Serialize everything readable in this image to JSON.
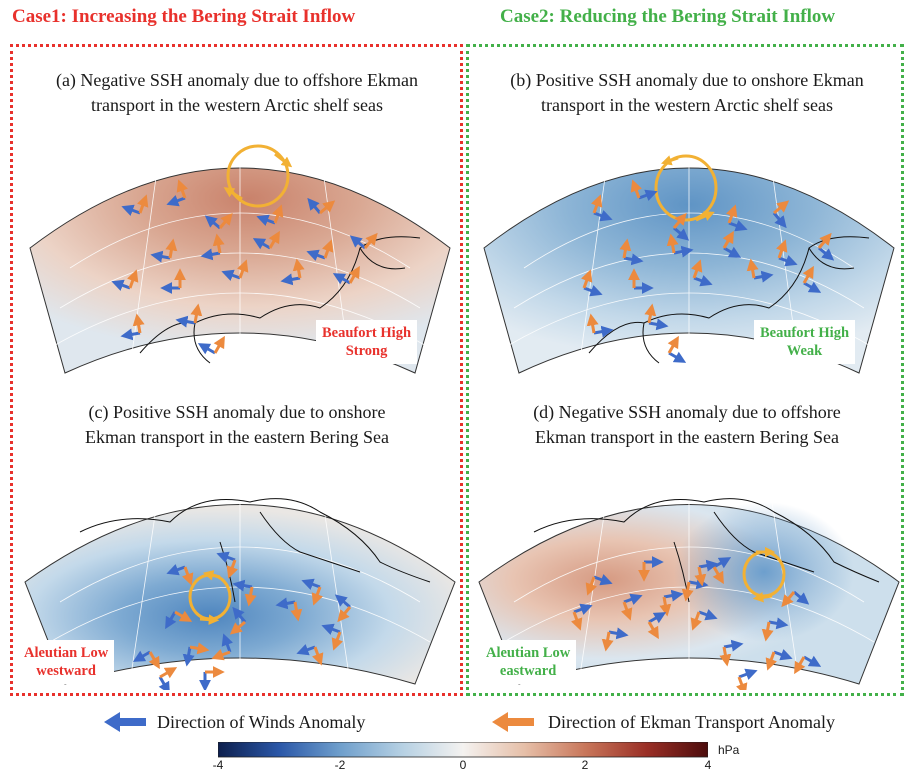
{
  "case1_title": "Case1: Increasing the Bering Strait Inflow",
  "case2_title": "Case2: Reducing the Bering Strait Inflow",
  "panels": {
    "a": {
      "line1": "(a) Negative SSH anomaly due to offshore Ekman",
      "line2": "transport in the western Arctic shelf seas",
      "label1": "Beaufort High",
      "label2": "Strong"
    },
    "b": {
      "line1": "(b) Positive SSH anomaly due to onshore Ekman",
      "line2": "transport in the western Arctic shelf seas",
      "label1": "Beaufort High",
      "label2": "Weak"
    },
    "c": {
      "line1": "(c) Positive SSH anomaly due to onshore",
      "line2": "Ekman transport in the eastern Bering Sea",
      "label1": "Aleutian Low",
      "label2": "westward"
    },
    "d": {
      "line1": "(d) Negative SSH anomaly due to offshore",
      "line2": "Ekman transport in the eastern Bering Sea",
      "label1": "Aleutian Low",
      "label2": "eastward"
    }
  },
  "legend": {
    "winds_label": "Direction of Winds Anomaly",
    "ekman_label": "Direction of Ekman Transport Anomaly",
    "winds_color": "#3e6bc9",
    "ekman_color": "#ec8a3e"
  },
  "colorbar": {
    "ticks": [
      "-4",
      "-2",
      "0",
      "2",
      "4"
    ],
    "unit": "hPa",
    "colors": [
      "#0d1f4d",
      "#2a57a8",
      "#6f9fcc",
      "#b5d0e3",
      "#f4f2f0",
      "#e6bfa8",
      "#c8765a",
      "#9a2f26",
      "#4c0c0c"
    ]
  }
}
